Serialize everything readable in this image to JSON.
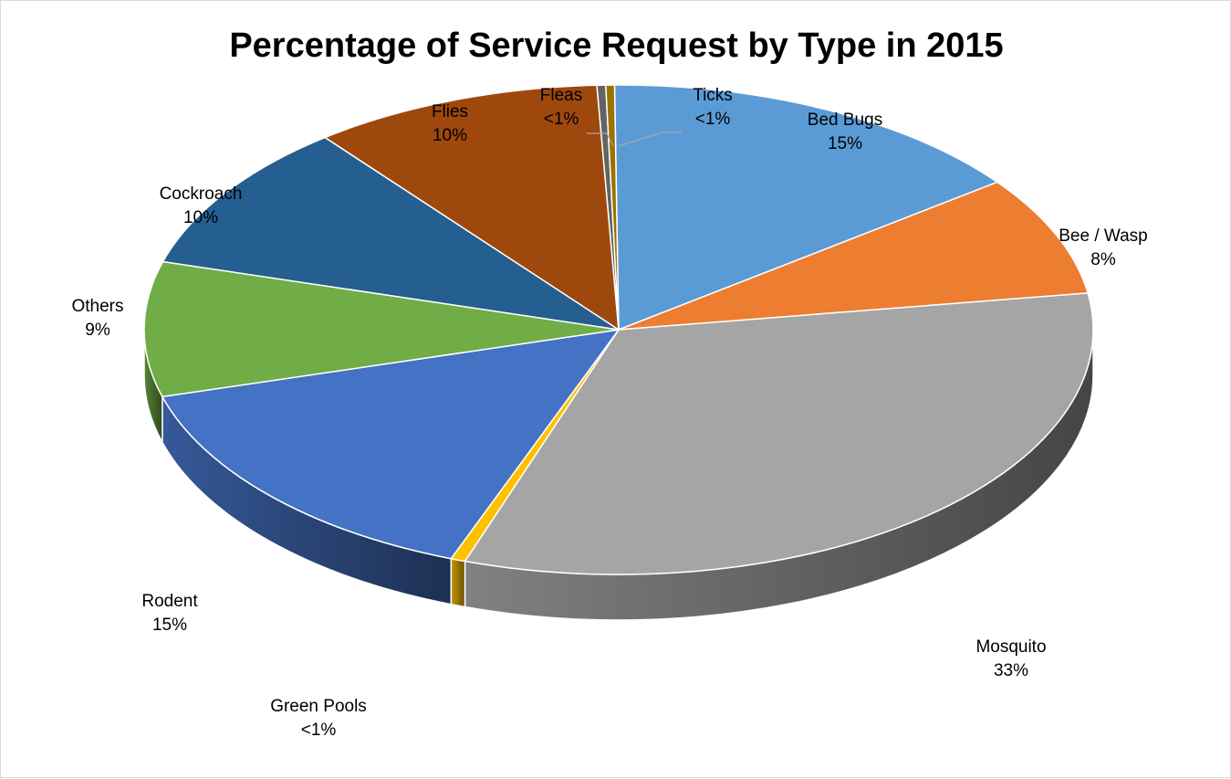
{
  "chart_data": {
    "type": "pie",
    "title": "Percentage of Service Request by Type in 2015",
    "slices": [
      {
        "name": "Bed Bugs",
        "value": 15,
        "label": "15%",
        "color": "#5b9bd5"
      },
      {
        "name": "Bee / Wasp",
        "value": 8,
        "label": "8%",
        "color": "#ed7d31"
      },
      {
        "name": "Mosquito",
        "value": 33,
        "label": "33%",
        "color": "#a5a5a5"
      },
      {
        "name": "Green Pools",
        "value": 0.5,
        "label": "<1%",
        "color": "#ffc000"
      },
      {
        "name": "Rodent",
        "value": 15,
        "label": "15%",
        "color": "#4472c4"
      },
      {
        "name": "Others",
        "value": 9,
        "label": "9%",
        "color": "#70ad47"
      },
      {
        "name": "Cockroach",
        "value": 10,
        "label": "10%",
        "color": "#255e91"
      },
      {
        "name": "Flies",
        "value": 10,
        "label": "10%",
        "color": "#9e480e"
      },
      {
        "name": "Fleas",
        "value": 0.3,
        "label": "<1%",
        "color": "#636363"
      },
      {
        "name": "Ticks",
        "value": 0.3,
        "label": "<1%",
        "color": "#997300"
      }
    ],
    "style": "3d-pie"
  }
}
